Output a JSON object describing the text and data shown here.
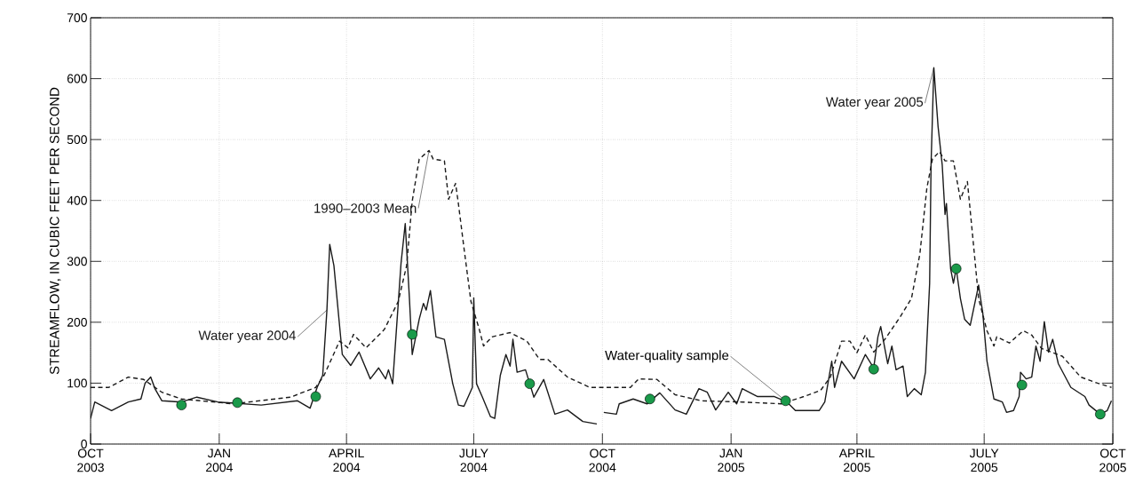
{
  "chart_data": {
    "type": "line",
    "ylabel": "STREAMFLOW, IN CUBIC FEET PER SECOND",
    "xlim": [
      "2003-10-01",
      "2005-10-01"
    ],
    "xticks": [
      {
        "value": "2003-10-01",
        "label": "OCT 2003"
      },
      {
        "value": "2004-01-01",
        "label": "JAN 2004"
      },
      {
        "value": "2004-04-01",
        "label": "APRIL 2004"
      },
      {
        "value": "2004-07-01",
        "label": "JULY 2004"
      },
      {
        "value": "2004-10-01",
        "label": "OCT 2004"
      },
      {
        "value": "2005-01-01",
        "label": "JAN 2005"
      },
      {
        "value": "2005-04-01",
        "label": "APRIL 2005"
      },
      {
        "value": "2005-07-01",
        "label": "JULY 2005"
      },
      {
        "value": "2005-10-01",
        "label": "OCT 2005"
      }
    ],
    "ylim": [
      0,
      700
    ],
    "yticks": [
      0,
      100,
      200,
      300,
      400,
      500,
      600,
      700
    ],
    "grid": true,
    "series": [
      {
        "name": "Water year 2004",
        "line_style": "solid",
        "color": "#1a1a1a",
        "x": [
          "2003-10-01",
          "2003-10-04",
          "2003-10-16",
          "2003-10-28",
          "2003-11-06",
          "2003-11-09",
          "2003-11-13",
          "2003-11-16",
          "2003-11-21",
          "2003-12-05",
          "2003-12-16",
          "2003-12-31",
          "2004-01-31",
          "2004-02-26",
          "2004-03-06",
          "2004-03-11",
          "2004-03-15",
          "2004-03-18",
          "2004-03-20",
          "2004-03-23",
          "2004-03-29",
          "2004-04-04",
          "2004-04-10",
          "2004-04-18",
          "2004-04-24",
          "2004-04-29",
          "2004-05-01",
          "2004-05-04",
          "2004-05-10",
          "2004-05-13",
          "2004-05-16",
          "2004-05-18",
          "2004-05-23",
          "2004-05-26",
          "2004-05-28",
          "2004-05-31",
          "2004-06-04",
          "2004-06-10",
          "2004-06-16",
          "2004-06-20",
          "2004-06-24",
          "2004-06-30",
          "2004-07-01",
          "2004-07-03",
          "2004-07-07",
          "2004-07-13",
          "2004-07-16",
          "2004-07-20",
          "2004-07-24",
          "2004-07-27",
          "2004-07-29",
          "2004-08-01",
          "2004-08-07",
          "2004-08-13",
          "2004-08-20",
          "2004-08-28",
          "2004-09-06",
          "2004-09-17",
          "2004-09-27"
        ],
        "values": [
          42,
          69,
          55,
          69,
          74,
          100,
          110,
          91,
          71,
          69,
          77,
          69,
          64,
          71,
          59,
          93,
          113,
          220,
          328,
          293,
          147,
          129,
          151,
          107,
          125,
          107,
          122,
          99,
          297,
          362,
          239,
          147,
          205,
          231,
          220,
          252,
          176,
          172,
          99,
          64,
          62,
          93,
          240,
          99,
          78,
          45,
          42,
          113,
          147,
          128,
          172,
          118,
          122,
          77,
          106,
          49,
          56,
          37,
          33
        ]
      },
      {
        "name": "Water year 2005",
        "line_style": "solid",
        "color": "#1a1a1a",
        "x": [
          "2004-10-02",
          "2004-10-11",
          "2004-10-13",
          "2004-10-23",
          "2004-11-02",
          "2004-11-11",
          "2004-11-22",
          "2004-11-30",
          "2004-12-09",
          "2004-12-15",
          "2004-12-21",
          "2004-12-30",
          "2005-01-05",
          "2005-01-09",
          "2005-01-20",
          "2005-02-01",
          "2005-02-10",
          "2005-02-16",
          "2005-03-05",
          "2005-03-09",
          "2005-03-14",
          "2005-03-16",
          "2005-03-21",
          "2005-03-30",
          "2005-04-07",
          "2005-04-13",
          "2005-04-16",
          "2005-04-18",
          "2005-04-23",
          "2005-04-26",
          "2005-04-29",
          "2005-05-04",
          "2005-05-07",
          "2005-05-12",
          "2005-05-17",
          "2005-05-20",
          "2005-05-23",
          "2005-05-24",
          "2005-05-26",
          "2005-05-29",
          "2005-06-01",
          "2005-06-03",
          "2005-06-04",
          "2005-06-07",
          "2005-06-09",
          "2005-06-11",
          "2005-06-14",
          "2005-06-17",
          "2005-06-21",
          "2005-06-27",
          "2005-06-30",
          "2005-07-03",
          "2005-07-08",
          "2005-07-14",
          "2005-07-17",
          "2005-07-22",
          "2005-07-26",
          "2005-07-27",
          "2005-07-31",
          "2005-08-04",
          "2005-08-07",
          "2005-08-10",
          "2005-08-13",
          "2005-08-16",
          "2005-08-19",
          "2005-08-23",
          "2005-09-01",
          "2005-09-11",
          "2005-09-14",
          "2005-09-22",
          "2005-09-27",
          "2005-09-30"
        ],
        "values": [
          52,
          49,
          66,
          74,
          66,
          84,
          56,
          49,
          91,
          85,
          56,
          85,
          66,
          91,
          78,
          78,
          69,
          55,
          55,
          69,
          136,
          93,
          136,
          107,
          147,
          125,
          176,
          193,
          132,
          161,
          122,
          128,
          78,
          91,
          81,
          118,
          264,
          458,
          618,
          522,
          458,
          377,
          395,
          288,
          264,
          288,
          239,
          205,
          195,
          261,
          215,
          136,
          74,
          69,
          52,
          55,
          78,
          118,
          107,
          110,
          161,
          136,
          201,
          151,
          172,
          132,
          93,
          78,
          64,
          49,
          55,
          71
        ]
      },
      {
        "name": "1990–2003 Mean",
        "line_style": "dashed",
        "color": "#1a1a1a",
        "x": [
          "2003-10-01",
          "2003-10-14",
          "2003-10-28",
          "2003-11-08",
          "2003-11-21",
          "2003-12-05",
          "2004-01-11",
          "2004-02-21",
          "2004-03-10",
          "2004-03-16",
          "2004-03-27",
          "2004-04-02",
          "2004-04-06",
          "2004-04-15",
          "2004-04-28",
          "2004-05-08",
          "2004-05-14",
          "2004-05-18",
          "2004-05-23",
          "2004-05-30",
          "2004-06-02",
          "2004-06-10",
          "2004-06-13",
          "2004-06-18",
          "2004-06-20",
          "2004-06-24",
          "2004-06-29",
          "2004-07-05",
          "2004-07-08",
          "2004-07-14",
          "2004-07-27",
          "2004-08-08",
          "2004-08-17",
          "2004-08-23",
          "2004-09-06",
          "2004-09-22",
          "2004-10-02",
          "2004-10-21",
          "2004-10-27",
          "2004-11-09",
          "2004-11-22",
          "2004-12-11",
          "2005-01-09",
          "2005-02-06",
          "2005-02-22",
          "2005-03-06",
          "2005-03-13",
          "2005-03-21",
          "2005-03-27",
          "2005-04-01",
          "2005-04-07",
          "2005-04-13",
          "2005-04-21",
          "2005-05-02",
          "2005-05-10",
          "2005-05-16",
          "2005-05-21",
          "2005-05-25",
          "2005-05-30",
          "2005-06-03",
          "2005-06-09",
          "2005-06-14",
          "2005-06-19",
          "2005-06-23",
          "2005-06-27",
          "2005-07-03",
          "2005-07-08",
          "2005-07-10",
          "2005-07-19",
          "2005-07-29",
          "2005-08-04",
          "2005-08-11",
          "2005-08-26",
          "2005-09-08",
          "2005-09-20",
          "2005-09-30"
        ],
        "values": [
          93,
          93,
          110,
          106,
          85,
          74,
          66,
          77,
          93,
          113,
          169,
          158,
          180,
          158,
          188,
          234,
          293,
          399,
          468,
          482,
          468,
          465,
          402,
          428,
          395,
          322,
          234,
          188,
          161,
          176,
          183,
          169,
          139,
          139,
          110,
          93,
          93,
          93,
          107,
          106,
          81,
          71,
          69,
          66,
          78,
          88,
          110,
          169,
          169,
          150,
          179,
          151,
          172,
          209,
          239,
          312,
          420,
          468,
          480,
          465,
          465,
          402,
          431,
          336,
          239,
          186,
          161,
          176,
          166,
          186,
          179,
          157,
          144,
          110,
          100,
          93
        ]
      },
      {
        "name": "Water-quality sample",
        "type": "scatter",
        "marker": "circle",
        "color": "#1a9a4a",
        "x": [
          "2003-12-05",
          "2004-01-14",
          "2004-03-10",
          "2004-05-18",
          "2004-08-10",
          "2004-11-04",
          "2005-02-09",
          "2005-04-13",
          "2005-06-11",
          "2005-07-28",
          "2005-09-22"
        ],
        "values": [
          64,
          68,
          78,
          180,
          99,
          74,
          71,
          123,
          288,
          97,
          49
        ]
      }
    ]
  }
}
